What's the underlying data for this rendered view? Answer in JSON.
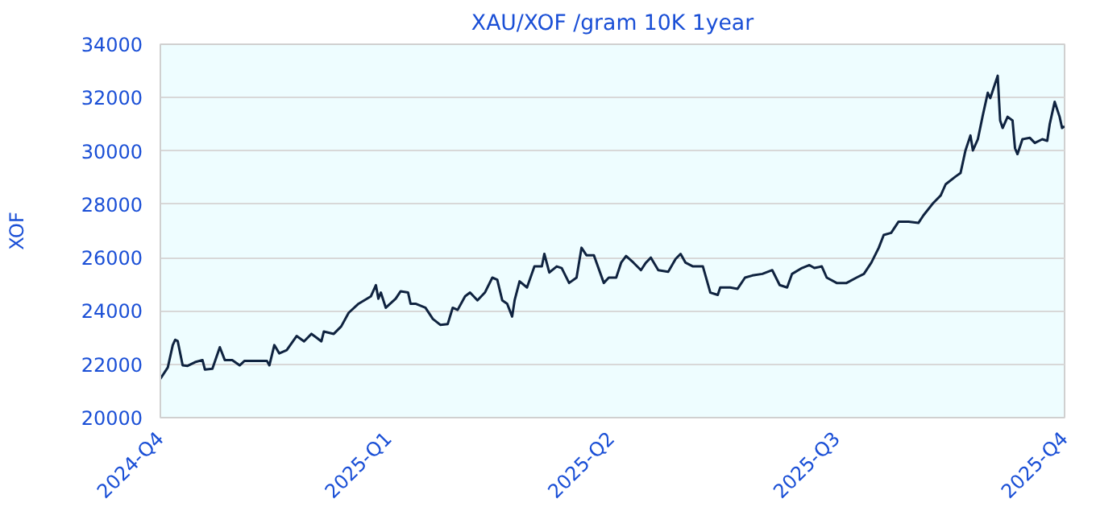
{
  "chart_data": {
    "type": "line",
    "title": "XAU/XOF /gram 10K 1year",
    "ylabel": "XOF",
    "x": [
      "2024-10-01",
      "2024-10-04",
      "2024-10-06",
      "2024-10-07",
      "2024-10-08",
      "2024-10-10",
      "2024-10-12",
      "2024-10-15",
      "2024-10-18",
      "2024-10-19",
      "2024-10-22",
      "2024-10-25",
      "2024-10-27",
      "2024-10-30",
      "2024-11-02",
      "2024-11-04",
      "2024-11-09",
      "2024-11-13",
      "2024-11-14",
      "2024-11-16",
      "2024-11-18",
      "2024-11-21",
      "2024-11-25",
      "2024-11-28",
      "2024-12-01",
      "2024-12-03",
      "2024-12-05",
      "2024-12-06",
      "2024-12-10",
      "2024-12-13",
      "2024-12-16",
      "2024-12-20",
      "2024-12-25",
      "2024-12-27",
      "2024-12-28",
      "2024-12-29",
      "2024-12-31",
      "2025-01-04",
      "2025-01-06",
      "2025-01-09",
      "2025-01-10",
      "2025-01-12",
      "2025-01-16",
      "2025-01-19",
      "2025-01-22",
      "2025-01-25",
      "2025-01-27",
      "2025-01-29",
      "2025-02-01",
      "2025-02-03",
      "2025-02-06",
      "2025-02-09",
      "2025-02-12",
      "2025-02-14",
      "2025-02-16",
      "2025-02-18",
      "2025-02-20",
      "2025-02-21",
      "2025-02-23",
      "2025-02-26",
      "2025-03-01",
      "2025-03-04",
      "2025-03-05",
      "2025-03-07",
      "2025-03-10",
      "2025-03-12",
      "2025-03-15",
      "2025-03-18",
      "2025-03-20",
      "2025-03-22",
      "2025-03-25",
      "2025-03-29",
      "2025-03-31",
      "2025-04-03",
      "2025-04-05",
      "2025-04-07",
      "2025-04-10",
      "2025-04-13",
      "2025-04-15",
      "2025-04-17",
      "2025-04-20",
      "2025-04-24",
      "2025-04-27",
      "2025-04-29",
      "2025-05-01",
      "2025-05-04",
      "2025-05-08",
      "2025-05-11",
      "2025-05-14",
      "2025-05-15",
      "2025-05-19",
      "2025-05-22",
      "2025-05-25",
      "2025-05-28",
      "2025-06-01",
      "2025-06-05",
      "2025-06-08",
      "2025-06-11",
      "2025-06-13",
      "2025-06-17",
      "2025-06-20",
      "2025-06-22",
      "2025-06-25",
      "2025-06-27",
      "2025-07-01",
      "2025-07-05",
      "2025-07-09",
      "2025-07-12",
      "2025-07-15",
      "2025-07-18",
      "2025-07-20",
      "2025-07-23",
      "2025-07-26",
      "2025-07-30",
      "2025-08-03",
      "2025-08-05",
      "2025-08-09",
      "2025-08-12",
      "2025-08-14",
      "2025-08-18",
      "2025-08-20",
      "2025-08-22",
      "2025-08-24",
      "2025-08-25",
      "2025-08-27",
      "2025-08-29",
      "2025-08-31",
      "2025-09-01",
      "2025-09-02",
      "2025-09-04",
      "2025-09-05",
      "2025-09-06",
      "2025-09-08",
      "2025-09-10",
      "2025-09-11",
      "2025-09-12",
      "2025-09-14",
      "2025-09-17",
      "2025-09-19",
      "2025-09-22",
      "2025-09-24",
      "2025-09-25",
      "2025-09-27",
      "2025-09-29",
      "2025-09-30",
      "2025-10-01"
    ],
    "series": [
      {
        "color": "#0f2340",
        "values": [
          21460,
          21880,
          22720,
          22920,
          22870,
          21960,
          21940,
          22080,
          22160,
          21800,
          21830,
          22640,
          22160,
          22160,
          21960,
          22130,
          22130,
          22130,
          21960,
          22720,
          22410,
          22530,
          23060,
          22860,
          23140,
          23000,
          22860,
          23230,
          23140,
          23420,
          23930,
          24270,
          24550,
          24970,
          24460,
          24690,
          24120,
          24460,
          24740,
          24690,
          24270,
          24270,
          24120,
          23700,
          23480,
          23510,
          24120,
          24040,
          24550,
          24690,
          24400,
          24690,
          25250,
          25170,
          24400,
          24270,
          23790,
          24400,
          25110,
          24880,
          25670,
          25670,
          26140,
          25440,
          25670,
          25610,
          25050,
          25250,
          26370,
          26090,
          26090,
          25050,
          25250,
          25250,
          25810,
          26060,
          25810,
          25530,
          25810,
          26000,
          25530,
          25470,
          25950,
          26140,
          25810,
          25670,
          25670,
          24690,
          24600,
          24880,
          24880,
          24830,
          25250,
          25330,
          25390,
          25530,
          24970,
          24880,
          25390,
          25610,
          25720,
          25610,
          25670,
          25250,
          25050,
          25050,
          25250,
          25390,
          25810,
          26370,
          26850,
          26930,
          27350,
          27350,
          27300,
          27580,
          28050,
          28330,
          28750,
          29040,
          29170,
          30020,
          30580,
          30020,
          30440,
          31340,
          32180,
          31980,
          32260,
          32820,
          31140,
          30860,
          31280,
          31140,
          30100,
          29880,
          30440,
          30490,
          30300,
          30440,
          30380,
          31000,
          31840,
          31280,
          30860,
          30920
        ]
      }
    ],
    "xlim": [
      "2024-10-01",
      "2025-10-01"
    ],
    "xticks": [
      {
        "value": "2024-10-01",
        "label": "2024-Q4"
      },
      {
        "value": "2025-01-01",
        "label": "2025-Q1"
      },
      {
        "value": "2025-04-01",
        "label": "2025-Q2"
      },
      {
        "value": "2025-07-01",
        "label": "2025-Q3"
      },
      {
        "value": "2025-10-01",
        "label": "2025-Q4"
      }
    ],
    "ylim": [
      20000,
      34000
    ],
    "yticks": [
      20000,
      22000,
      24000,
      26000,
      28000,
      30000,
      32000,
      34000
    ],
    "grid": "y",
    "marker": "none",
    "line_style": "solid"
  }
}
